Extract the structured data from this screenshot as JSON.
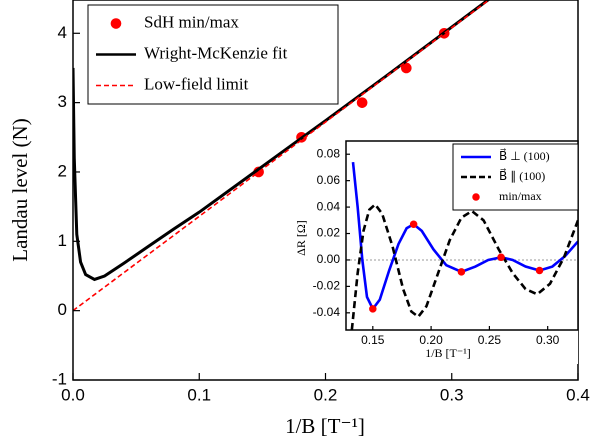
{
  "chart_data": [
    {
      "type": "line",
      "x_label": "1/B [T⁻¹]",
      "y_label": "Landau level (N)",
      "xlim": [
        0,
        0.4
      ],
      "ylim": [
        -1,
        4.48
      ],
      "xticks": [
        {
          "value": 0,
          "label": "0.0"
        },
        0.1,
        0.2,
        0.3,
        0.4
      ],
      "yticks": [
        -1,
        0,
        1,
        2,
        3,
        4
      ],
      "legend": "upper left",
      "series": [
        {
          "name": "SdH min/max",
          "color": "#ff0000",
          "style": "markers",
          "x": [
            0.147,
            0.181,
            0.229,
            0.264,
            0.294
          ],
          "values": [
            2,
            2.5,
            3,
            3.5,
            4
          ]
        },
        {
          "name": "Wright-McKenzie fit",
          "color": "#000000",
          "style": "solid",
          "x": [
            0,
            0.001,
            0.003,
            0.006,
            0.01,
            0.017,
            0.025,
            0.04,
            0.06,
            0.08,
            0.1,
            0.15,
            0.2,
            0.25,
            0.3,
            0.35
          ],
          "values": [
            3.5,
            2.2,
            1.1,
            0.7,
            0.52,
            0.45,
            0.5,
            0.68,
            0.93,
            1.18,
            1.42,
            2.08,
            2.74,
            3.41,
            4.09,
            4.77
          ]
        },
        {
          "name": "Low-field limit",
          "color": "#ff0000",
          "style": "dashed",
          "x": [
            0,
            0.4
          ],
          "values": [
            0,
            5.44
          ]
        }
      ]
    },
    {
      "type": "line",
      "x_label": "1/B [T⁻¹]",
      "y_label": "ΔR [Ω]",
      "xlim": [
        0.127,
        0.326
      ],
      "ylim": [
        -0.053,
        0.09
      ],
      "xticks": [
        0.15,
        {
          "value": 0.2,
          "label": "0.20"
        },
        0.25,
        {
          "value": 0.3,
          "label": "0.30"
        }
      ],
      "yticks": [
        -0.04,
        -0.02,
        {
          "value": 0,
          "label": "0.00"
        },
        0.02,
        0.04,
        0.06,
        0.08
      ],
      "legend": "upper right",
      "zero_line": true,
      "series": [
        {
          "name": "B⃗ ⊥ (100)",
          "color": "#0000ff",
          "style": "solid",
          "x": [
            0.133,
            0.137,
            0.141,
            0.145,
            0.15,
            0.156,
            0.164,
            0.172,
            0.179,
            0.185,
            0.192,
            0.202,
            0.213,
            0.226,
            0.238,
            0.249,
            0.26,
            0.27,
            0.281,
            0.293,
            0.304,
            0.315,
            0.326
          ],
          "values": [
            0.074,
            0.04,
            0.0,
            -0.028,
            -0.037,
            -0.03,
            -0.008,
            0.012,
            0.024,
            0.027,
            0.022,
            0.008,
            -0.004,
            -0.009,
            -0.005,
            0.0,
            0.002,
            0.0,
            -0.005,
            -0.008,
            -0.005,
            0.003,
            0.014
          ]
        },
        {
          "name": "B⃗ ∥ (100)",
          "color": "#000000",
          "style": "dashed",
          "x": [
            0.132,
            0.137,
            0.142,
            0.147,
            0.152,
            0.158,
            0.167,
            0.176,
            0.183,
            0.189,
            0.196,
            0.206,
            0.216,
            0.226,
            0.235,
            0.245,
            0.258,
            0.27,
            0.281,
            0.291,
            0.302,
            0.314,
            0.326
          ],
          "values": [
            -0.053,
            -0.01,
            0.022,
            0.038,
            0.042,
            0.035,
            0.01,
            -0.022,
            -0.039,
            -0.043,
            -0.035,
            -0.01,
            0.015,
            0.032,
            0.037,
            0.03,
            0.008,
            -0.01,
            -0.022,
            -0.026,
            -0.018,
            0.002,
            0.03
          ]
        },
        {
          "name": "min/max",
          "color": "#ff0000",
          "style": "markers",
          "x": [
            0.15,
            0.185,
            0.226,
            0.26,
            0.293
          ],
          "values": [
            -0.037,
            0.027,
            -0.009,
            0.002,
            -0.008
          ]
        }
      ]
    }
  ]
}
